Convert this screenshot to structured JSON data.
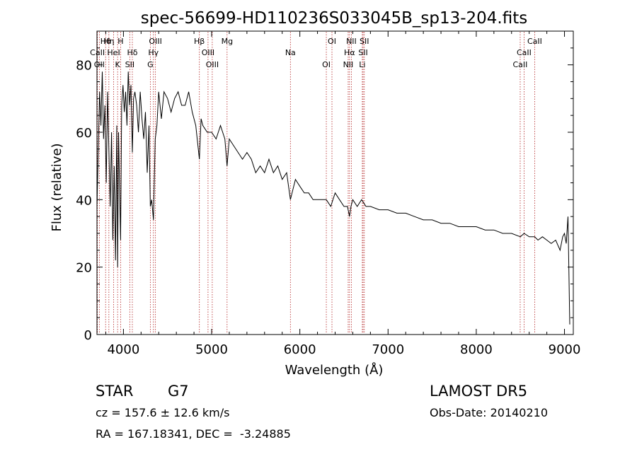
{
  "chart_data": {
    "type": "line",
    "title": "spec-56699-HD110236S033045B_sp13-204.fits",
    "xlabel": "Wavelength (Å)",
    "ylabel": "Flux (relative)",
    "xlim": [
      3700,
      9100
    ],
    "ylim": [
      0,
      90
    ],
    "xticks": [
      4000,
      5000,
      6000,
      7000,
      8000,
      9000
    ],
    "yticks": [
      0,
      20,
      40,
      60,
      80
    ],
    "grid": false,
    "series": [
      {
        "color": "#000000",
        "x": [
          3700,
          3715,
          3730,
          3745,
          3760,
          3775,
          3790,
          3805,
          3820,
          3835,
          3850,
          3865,
          3880,
          3895,
          3910,
          3925,
          3934,
          3945,
          3955,
          3968,
          3980,
          3995,
          4010,
          4025,
          4040,
          4055,
          4070,
          4085,
          4101,
          4115,
          4130,
          4150,
          4170,
          4190,
          4210,
          4230,
          4250,
          4270,
          4290,
          4305,
          4320,
          4340,
          4360,
          4380,
          4400,
          4430,
          4460,
          4500,
          4540,
          4580,
          4620,
          4660,
          4700,
          4740,
          4780,
          4820,
          4861,
          4880,
          4900,
          4950,
          5000,
          5050,
          5100,
          5150,
          5175,
          5200,
          5250,
          5300,
          5350,
          5400,
          5450,
          5500,
          5550,
          5600,
          5650,
          5700,
          5750,
          5800,
          5850,
          5893,
          5950,
          6000,
          6050,
          6100,
          6150,
          6200,
          6250,
          6300,
          6350,
          6400,
          6450,
          6500,
          6540,
          6563,
          6580,
          6600,
          6650,
          6700,
          6750,
          6800,
          6900,
          7000,
          7100,
          7200,
          7300,
          7400,
          7500,
          7600,
          7700,
          7800,
          7900,
          8000,
          8100,
          8200,
          8300,
          8400,
          8500,
          8542,
          8600,
          8662,
          8700,
          8750,
          8800,
          8850,
          8900,
          8950,
          8980,
          9000,
          9020,
          9040,
          9060
        ],
        "y": [
          38,
          55,
          72,
          62,
          78,
          58,
          68,
          45,
          72,
          55,
          38,
          60,
          28,
          50,
          22,
          62,
          20,
          60,
          45,
          28,
          68,
          74,
          66,
          72,
          62,
          78,
          68,
          74,
          54,
          70,
          72,
          68,
          60,
          72,
          64,
          58,
          66,
          48,
          62,
          38,
          40,
          34,
          58,
          62,
          72,
          64,
          72,
          70,
          66,
          70,
          72,
          68,
          68,
          72,
          66,
          62,
          52,
          64,
          62,
          60,
          60,
          58,
          62,
          58,
          50,
          58,
          56,
          54,
          52,
          54,
          52,
          48,
          50,
          48,
          52,
          48,
          50,
          46,
          48,
          40,
          46,
          44,
          42,
          42,
          40,
          40,
          40,
          40,
          38,
          42,
          40,
          38,
          38,
          35,
          38,
          40,
          38,
          40,
          38,
          38,
          37,
          37,
          36,
          36,
          35,
          34,
          34,
          33,
          33,
          32,
          32,
          32,
          31,
          31,
          30,
          30,
          29,
          30,
          29,
          29,
          28,
          29,
          28,
          27,
          28,
          25,
          29,
          30,
          27,
          35,
          3
        ]
      }
    ],
    "lines": [
      {
        "label": "Hθ",
        "x": 3798
      },
      {
        "label": "CaII",
        "x": 3705
      },
      {
        "label": "OII",
        "x": 3727
      },
      {
        "label": "Hη",
        "x": 3835
      },
      {
        "label": "HeI",
        "x": 3889
      },
      {
        "label": "K",
        "x": 3934
      },
      {
        "label": "H",
        "x": 3968
      },
      {
        "label": "Hδ",
        "x": 4101
      },
      {
        "label": "SII",
        "x": 4072
      },
      {
        "label": "OIII",
        "x": 4363
      },
      {
        "label": "Hγ",
        "x": 4340
      },
      {
        "label": "G",
        "x": 4305
      },
      {
        "label": "Hβ",
        "x": 4861
      },
      {
        "label": "OIII",
        "x": 4959
      },
      {
        "label": "OIII",
        "x": 5007
      },
      {
        "label": "Mg",
        "x": 5175
      },
      {
        "label": "Na",
        "x": 5893
      },
      {
        "label": "OI",
        "x": 6300
      },
      {
        "label": "OI",
        "x": 6364
      },
      {
        "label": "Hα",
        "x": 6563
      },
      {
        "label": "NII",
        "x": 6548
      },
      {
        "label": "NII",
        "x": 6584
      },
      {
        "label": "SII",
        "x": 6717
      },
      {
        "label": "Li",
        "x": 6708
      },
      {
        "label": "SII",
        "x": 6731
      },
      {
        "label": "CaII",
        "x": 8542
      },
      {
        "label": "CaII",
        "x": 8498
      },
      {
        "label": "CaII",
        "x": 8662
      }
    ]
  },
  "info": {
    "class_label": "STAR",
    "subclass": "G7",
    "survey": "LAMOST DR5",
    "redshift": "cz = 157.6 ± 12.6 km/s",
    "obs_date": "Obs-Date: 20140210",
    "coords": "RA = 167.18341, DEC =  -3.24885"
  }
}
